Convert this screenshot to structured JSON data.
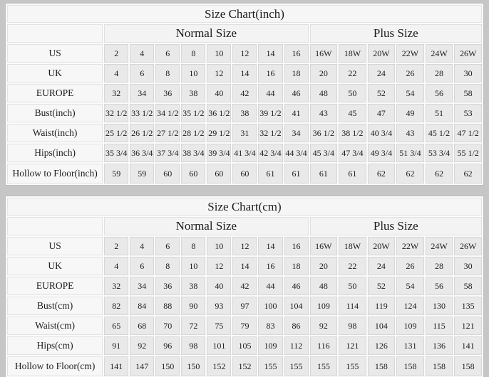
{
  "style": {
    "page_background": "#c6c6c6",
    "grid_gap_color": "#fbfbfb",
    "data_cell_background": "#e9e9e9",
    "header_cell_background": "#f6f6f6",
    "text_color": "#1c1c1c"
  },
  "chart_data": [
    {
      "type": "table",
      "title": "Size Chart(inch)",
      "groups": [
        {
          "label": "Normal Size",
          "span": 8
        },
        {
          "label": "Plus Size",
          "span": 6
        }
      ],
      "column_headers_note": "first 8 value columns are Normal Size, last 6 are Plus Size",
      "rows": [
        {
          "label": "US",
          "values": [
            "2",
            "4",
            "6",
            "8",
            "10",
            "12",
            "14",
            "16",
            "16W",
            "18W",
            "20W",
            "22W",
            "24W",
            "26W"
          ]
        },
        {
          "label": "UK",
          "values": [
            "4",
            "6",
            "8",
            "10",
            "12",
            "14",
            "16",
            "18",
            "20",
            "22",
            "24",
            "26",
            "28",
            "30"
          ]
        },
        {
          "label": "EUROPE",
          "values": [
            "32",
            "34",
            "36",
            "38",
            "40",
            "42",
            "44",
            "46",
            "48",
            "50",
            "52",
            "54",
            "56",
            "58"
          ]
        },
        {
          "label": "Bust(inch)",
          "values": [
            "32 1/2",
            "33 1/2",
            "34 1/2",
            "35 1/2",
            "36 1/2",
            "38",
            "39 1/2",
            "41",
            "43",
            "45",
            "47",
            "49",
            "51",
            "53"
          ]
        },
        {
          "label": "Waist(inch)",
          "values": [
            "25 1/2",
            "26 1/2",
            "27 1/2",
            "28 1/2",
            "29 1/2",
            "31",
            "32 1/2",
            "34",
            "36 1/2",
            "38 1/2",
            "40 3/4",
            "43",
            "45 1/2",
            "47 1/2"
          ]
        },
        {
          "label": "Hips(inch)",
          "values": [
            "35 3/4",
            "36 3/4",
            "37 3/4",
            "38 3/4",
            "39 3/4",
            "41 3/4",
            "42 3/4",
            "44 3/4",
            "45 3/4",
            "47 3/4",
            "49 3/4",
            "51 3/4",
            "53 3/4",
            "55 1/2"
          ]
        },
        {
          "label": "Hollow to Floor(inch)",
          "values": [
            "59",
            "59",
            "60",
            "60",
            "60",
            "60",
            "61",
            "61",
            "61",
            "61",
            "62",
            "62",
            "62",
            "62"
          ]
        }
      ]
    },
    {
      "type": "table",
      "title": "Size Chart(cm)",
      "groups": [
        {
          "label": "Normal Size",
          "span": 8
        },
        {
          "label": "Plus Size",
          "span": 6
        }
      ],
      "column_headers_note": "first 8 value columns are Normal Size, last 6 are Plus Size",
      "rows": [
        {
          "label": "US",
          "values": [
            "2",
            "4",
            "6",
            "8",
            "10",
            "12",
            "14",
            "16",
            "16W",
            "18W",
            "20W",
            "22W",
            "24W",
            "26W"
          ]
        },
        {
          "label": "UK",
          "values": [
            "4",
            "6",
            "8",
            "10",
            "12",
            "14",
            "16",
            "18",
            "20",
            "22",
            "24",
            "26",
            "28",
            "30"
          ]
        },
        {
          "label": "EUROPE",
          "values": [
            "32",
            "34",
            "36",
            "38",
            "40",
            "42",
            "44",
            "46",
            "48",
            "50",
            "52",
            "54",
            "56",
            "58"
          ]
        },
        {
          "label": "Bust(cm)",
          "values": [
            "82",
            "84",
            "88",
            "90",
            "93",
            "97",
            "100",
            "104",
            "109",
            "114",
            "119",
            "124",
            "130",
            "135"
          ]
        },
        {
          "label": "Waist(cm)",
          "values": [
            "65",
            "68",
            "70",
            "72",
            "75",
            "79",
            "83",
            "86",
            "92",
            "98",
            "104",
            "109",
            "115",
            "121"
          ]
        },
        {
          "label": "Hips(cm)",
          "values": [
            "91",
            "92",
            "96",
            "98",
            "101",
            "105",
            "109",
            "112",
            "116",
            "121",
            "126",
            "131",
            "136",
            "141"
          ]
        },
        {
          "label": "Hollow to Floor(cm)",
          "values": [
            "141",
            "147",
            "150",
            "150",
            "152",
            "152",
            "155",
            "155",
            "155",
            "155",
            "158",
            "158",
            "158",
            "158"
          ]
        }
      ]
    }
  ]
}
